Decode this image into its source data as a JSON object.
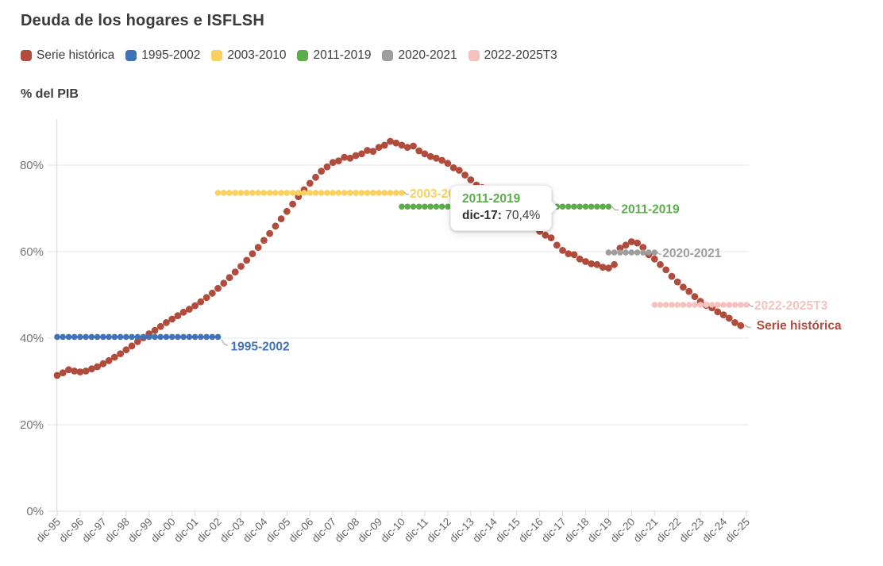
{
  "title": "Deuda de los hogares e ISFLSH",
  "y_axis_title": "% del PIB",
  "legend": [
    {
      "label": "Serie histórica",
      "color": "#b14b3c"
    },
    {
      "label": "1995-2002",
      "color": "#3f72b6"
    },
    {
      "label": "2003-2010",
      "color": "#fbd05c"
    },
    {
      "label": "2011-2019",
      "color": "#5cad49"
    },
    {
      "label": "2020-2021",
      "color": "#9e9e9e"
    },
    {
      "label": "2022-2025T3",
      "color": "#f7c2be"
    }
  ],
  "tooltip": {
    "series_label": "2011-2019",
    "series_color": "#5cad49",
    "point_label": "dic-17:",
    "value": "70,4%"
  },
  "chart_data": {
    "type": "line",
    "title": "Deuda de los hogares e ISFLSH",
    "ylabel": "% del PIB",
    "ylim": [
      0,
      88
    ],
    "grid": "horizontal",
    "legend_position": "top",
    "y_ticks": [
      0,
      20,
      40,
      60,
      80
    ],
    "y_tick_labels": [
      "0%",
      "20%",
      "40%",
      "60%",
      "80%"
    ],
    "x_tick_labels": [
      "dic-95",
      "dic-96",
      "dic-97",
      "dic-98",
      "dic-99",
      "dic-00",
      "dic-01",
      "dic-02",
      "dic-03",
      "dic-04",
      "dic-05",
      "dic-06",
      "dic-07",
      "dic-08",
      "dic-09",
      "dic-10",
      "dic-11",
      "dic-12",
      "dic-13",
      "dic-14",
      "dic-15",
      "dic-16",
      "dic-17",
      "dic-18",
      "dic-19",
      "dic-20",
      "dic-21",
      "dic-22",
      "dic-23",
      "dic-24",
      "dic-25"
    ],
    "series": {
      "name": "Serie histórica",
      "color": "#b14b3c",
      "frequency": "quarterly",
      "start": "dic-95",
      "end": "sep-25",
      "values": [
        31.4,
        32.0,
        32.7,
        32.4,
        32.2,
        32.4,
        32.9,
        33.4,
        34.1,
        34.8,
        35.6,
        36.4,
        37.3,
        38.2,
        39.2,
        40.1,
        41.0,
        41.8,
        42.7,
        43.6,
        44.4,
        45.2,
        46.0,
        46.7,
        47.5,
        48.4,
        49.4,
        50.4,
        51.5,
        52.7,
        54.0,
        55.3,
        56.6,
        58.0,
        59.5,
        61.0,
        62.6,
        64.2,
        65.9,
        67.6,
        69.3,
        71.0,
        72.7,
        74.3,
        75.8,
        77.2,
        78.6,
        79.6,
        80.6,
        81.0,
        81.8,
        81.6,
        82.2,
        82.6,
        83.4,
        83.2,
        84.1,
        84.6,
        85.5,
        85.1,
        84.6,
        84.1,
        84.4,
        83.3,
        82.6,
        82.0,
        81.6,
        81.1,
        80.4,
        79.4,
        78.8,
        77.7,
        76.6,
        75.4,
        74.8,
        73.6,
        72.5,
        71.5,
        70.9,
        69.7,
        68.8,
        67.8,
        67.2,
        66.0,
        64.7,
        63.8,
        63.2,
        61.5,
        60.3,
        59.5,
        59.3,
        58.3,
        57.7,
        57.2,
        57.0,
        56.4,
        56.2,
        57.0,
        60.8,
        61.5,
        62.3,
        62.0,
        61.0,
        59.3,
        58.3,
        57.0,
        55.8,
        54.3,
        53.0,
        51.8,
        50.8,
        49.6,
        48.5,
        47.6,
        47.0,
        46.1,
        45.4,
        44.6,
        43.6,
        42.9
      ],
      "end_label": "Serie histórica"
    },
    "segments": [
      {
        "label": "1995-2002",
        "color": "#3f72b6",
        "start_year_index": 0,
        "end_year_index": 7,
        "value": 40.3,
        "label_side": "below-right"
      },
      {
        "label": "2003-2010",
        "color": "#fbd05c",
        "start_year_index": 7,
        "end_year_index": 15,
        "value": 73.6,
        "label_side": "right"
      },
      {
        "label": "2011-2019",
        "color": "#5cad49",
        "start_year_index": 15,
        "end_year_index": 24,
        "value": 70.4,
        "label_side": "right-far"
      },
      {
        "label": "2020-2021",
        "color": "#9e9e9e",
        "start_year_index": 24,
        "end_year_index": 26,
        "value": 59.8,
        "label_side": "right"
      },
      {
        "label": "2022-2025T3",
        "color": "#f7c2be",
        "start_year_index": 26,
        "end_year_index": 30,
        "value": 47.7,
        "label_side": "right"
      }
    ]
  }
}
